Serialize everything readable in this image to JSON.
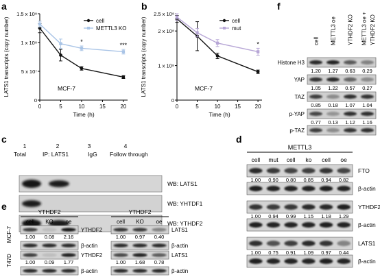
{
  "panels": {
    "a": "a",
    "b": "b",
    "c": "c",
    "d": "d",
    "e": "e",
    "f": "f"
  },
  "chart_data": [
    {
      "type": "line",
      "panel": "a",
      "ylabel": "LATS1 transcripts (copy number)",
      "xlabel": "Time (h)",
      "annotation": "MCF-7",
      "x_ticks": [
        0,
        5,
        10,
        15,
        20
      ],
      "xlim": [
        0,
        21
      ],
      "y_ticks": [
        0,
        50000000,
        100000000,
        150000000
      ],
      "y_tick_labels": [
        "0",
        "5 x 10⁷",
        "1 x 10⁸",
        "1.5 x 10⁸"
      ],
      "ylim": [
        0,
        150000000
      ],
      "legend_position": "top-right",
      "series": [
        {
          "name": "cell",
          "color": "#111111",
          "x": [
            0,
            5,
            10,
            20
          ],
          "y": [
            125000000,
            78000000,
            55000000,
            40000000
          ],
          "err": [
            8000000,
            10000000,
            3000000,
            2500000
          ]
        },
        {
          "name": "METTL3 KO",
          "color": "#a9c4e6",
          "x": [
            0,
            5,
            10,
            20
          ],
          "y": [
            132000000,
            98000000,
            90000000,
            84000000
          ],
          "err": [
            5000000,
            8000000,
            4000000,
            4000000
          ]
        }
      ],
      "significance": [
        {
          "x": 10,
          "label": "*"
        },
        {
          "x": 20,
          "label": "***"
        }
      ]
    },
    {
      "type": "line",
      "panel": "b",
      "ylabel": "LATS1 transcripts (copy number)",
      "xlabel": "Time (h)",
      "annotation": "MCF-7",
      "x_ticks": [
        0,
        5,
        10,
        15,
        20
      ],
      "xlim": [
        0,
        21
      ],
      "y_ticks": [
        0,
        100000000,
        200000000,
        250000000
      ],
      "y_tick_labels": [
        "0",
        "1 x 10⁸",
        "2 x 10⁸",
        "2.5 x 10⁸"
      ],
      "ylim": [
        0,
        250000000
      ],
      "legend_position": "top-right",
      "series": [
        {
          "name": "cell",
          "color": "#111111",
          "x": [
            0,
            5,
            10,
            20
          ],
          "y": [
            235000000,
            185000000,
            128000000,
            82000000
          ],
          "err": [
            10000000,
            42000000,
            8000000,
            5000000
          ]
        },
        {
          "name": "mut",
          "color": "#b7a6d6",
          "x": [
            0,
            5,
            10,
            20
          ],
          "y": [
            240000000,
            195000000,
            165000000,
            140000000
          ],
          "err": [
            10000000,
            12000000,
            10000000,
            10000000
          ]
        }
      ],
      "significance": [
        {
          "x": 20,
          "label": "*"
        }
      ]
    }
  ],
  "panel_c": {
    "lane_numbers": [
      "1",
      "2",
      "3",
      "4"
    ],
    "lane_labels": [
      "Total",
      "IP: LATS1",
      "IgG",
      "Follow through"
    ],
    "blots": [
      "WB: LATS1",
      "WB: YHTDF1",
      "WB: YTHDF2"
    ]
  },
  "panel_d": {
    "header": "METTL3",
    "lanes": [
      "cell",
      "mut",
      "cell",
      "ko",
      "cell",
      "oe"
    ],
    "blots": [
      {
        "label": "FTO",
        "values": [
          "1.00",
          "0.90",
          "0.80",
          "0.85",
          "0.94",
          "0.82"
        ]
      },
      {
        "label": "β-actin",
        "values": []
      },
      {
        "label": "YTHDF2",
        "values": [
          "1.00",
          "0.94",
          "0.99",
          "1.15",
          "1.18",
          "1.29"
        ]
      },
      {
        "label": "β-actin",
        "values": []
      },
      {
        "label": "LATS1",
        "values": [
          "1.00",
          "0.75",
          "0.91",
          "1.09",
          "0.97",
          "0.44"
        ]
      },
      {
        "label": "β-actin",
        "values": []
      }
    ]
  },
  "panel_e": {
    "header": "YTHDF2",
    "lanes": [
      "cell",
      "KO",
      "oe"
    ],
    "cell_lines": [
      "MCF-7",
      "T47D"
    ],
    "left_labels": [
      "YTHDF2",
      "β-actin",
      "YTHDF2",
      "β-actin"
    ],
    "right_labels": [
      "LATS1",
      "β-actin",
      "LATS1",
      "β-actin"
    ],
    "left_values": [
      [
        "1.00",
        "0.08",
        "2.16"
      ],
      [
        "1.00",
        "0.09",
        "1.77"
      ]
    ],
    "right_values": [
      [
        "1.00",
        "0.97",
        "0.40"
      ],
      [
        "1.00",
        "1.68",
        "0.78"
      ]
    ]
  },
  "panel_f": {
    "lanes": [
      "cell",
      "METTL3 oe",
      "YTHDF2 KO",
      "METTL3 oe +",
      "YTHDF2 KO"
    ],
    "blots": [
      {
        "label": "Histone H3",
        "values": [
          "1.20",
          "1.27",
          "0.63",
          "0.29"
        ]
      },
      {
        "label": "YAP",
        "values": [
          "1.05",
          "1.22",
          "0.57",
          "0.27"
        ]
      },
      {
        "label": "TAZ",
        "values": [
          "0.85",
          "0.18",
          "1.07",
          "1.04"
        ]
      },
      {
        "label": "p-YAP",
        "values": [
          "0.77",
          "0.13",
          "1.12",
          "1.16"
        ]
      },
      {
        "label": "p-TAZ",
        "values": []
      }
    ]
  }
}
